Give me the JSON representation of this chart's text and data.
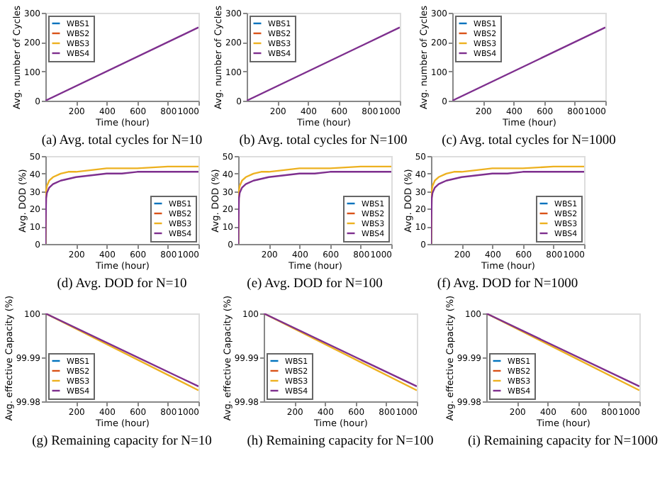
{
  "chart_data": [
    {
      "type": "line",
      "title": "(a) Avg. total cycles for N=10",
      "xlabel": "Time (hour)",
      "ylabel": "Avg. number of Cycles",
      "xlim": [
        0,
        1000
      ],
      "xticks": [
        200,
        400,
        600,
        800,
        1000
      ],
      "ylim": [
        0,
        300
      ],
      "yticks": [
        0,
        100,
        200,
        300
      ],
      "grid": false,
      "legend": "top left",
      "series": [
        {
          "name": "WBS1",
          "color": "#0072bd"
        },
        {
          "name": "WBS2",
          "color": "#d95319"
        },
        {
          "name": "WBS3",
          "color": "#edb120"
        },
        {
          "name": "WBS4",
          "color": "#7e2f8e",
          "x": [
            0,
            1000
          ],
          "values": [
            0,
            250
          ]
        }
      ]
    },
    {
      "type": "line",
      "title": "(b) Avg. total cycles for N=100",
      "xlabel": "Time (hour)",
      "ylabel": "Avg. number of Cycles",
      "xlim": [
        0,
        1000
      ],
      "xticks": [
        200,
        400,
        600,
        800,
        1000
      ],
      "ylim": [
        0,
        300
      ],
      "yticks": [
        0,
        100,
        200,
        300
      ],
      "grid": false,
      "legend": "top left",
      "series": [
        {
          "name": "WBS1",
          "color": "#0072bd"
        },
        {
          "name": "WBS2",
          "color": "#d95319"
        },
        {
          "name": "WBS3",
          "color": "#edb120"
        },
        {
          "name": "WBS4",
          "color": "#7e2f8e",
          "x": [
            0,
            1000
          ],
          "values": [
            0,
            250
          ]
        }
      ]
    },
    {
      "type": "line",
      "title": "(c) Avg. total cycles for N=1000",
      "xlabel": "Time (hour)",
      "ylabel": "Avg. number of Cycles",
      "xlim": [
        0,
        1000
      ],
      "xticks": [
        200,
        400,
        600,
        800,
        1000
      ],
      "ylim": [
        0,
        300
      ],
      "yticks": [
        0,
        100,
        200,
        300
      ],
      "grid": false,
      "legend": "top left",
      "series": [
        {
          "name": "WBS1",
          "color": "#0072bd"
        },
        {
          "name": "WBS2",
          "color": "#d95319"
        },
        {
          "name": "WBS3",
          "color": "#edb120"
        },
        {
          "name": "WBS4",
          "color": "#7e2f8e",
          "x": [
            0,
            1000
          ],
          "values": [
            0,
            250
          ]
        }
      ]
    },
    {
      "type": "line",
      "title": "(d) Avg. DOD for N=10",
      "xlabel": "Time (hour)",
      "ylabel": "Avg. DOD (%)",
      "xlim": [
        0,
        1000
      ],
      "xticks": [
        200,
        400,
        600,
        800,
        1000
      ],
      "ylim": [
        0,
        50
      ],
      "yticks": [
        0,
        10,
        20,
        30,
        40,
        50
      ],
      "grid": false,
      "legend": "bottom right",
      "series": [
        {
          "name": "WBS1",
          "color": "#0072bd"
        },
        {
          "name": "WBS2",
          "color": "#d95319"
        },
        {
          "name": "WBS3",
          "color": "#edb120",
          "x": [
            0,
            5,
            10,
            25,
            50,
            100,
            150,
            200,
            300,
            400,
            500,
            600,
            800,
            1000
          ],
          "values": [
            0,
            30,
            33,
            36,
            38,
            40,
            41,
            41,
            42,
            43,
            43,
            43,
            44,
            44
          ]
        },
        {
          "name": "WBS4",
          "color": "#7e2f8e",
          "x": [
            0,
            5,
            10,
            25,
            50,
            100,
            150,
            200,
            300,
            400,
            500,
            600,
            800,
            1000
          ],
          "values": [
            0,
            26,
            29,
            32,
            34,
            36,
            37,
            38,
            39,
            40,
            40,
            41,
            41,
            41
          ]
        }
      ]
    },
    {
      "type": "line",
      "title": "(e) Avg. DOD for N=100",
      "xlabel": "Time (hour)",
      "ylabel": "Avg. DOD (%)",
      "xlim": [
        0,
        1000
      ],
      "xticks": [
        200,
        400,
        600,
        800,
        1000
      ],
      "ylim": [
        0,
        50
      ],
      "yticks": [
        0,
        10,
        20,
        30,
        40,
        50
      ],
      "grid": false,
      "legend": "bottom right",
      "series": [
        {
          "name": "WBS1",
          "color": "#0072bd"
        },
        {
          "name": "WBS2",
          "color": "#d95319"
        },
        {
          "name": "WBS3",
          "color": "#edb120",
          "x": [
            0,
            5,
            10,
            25,
            50,
            100,
            150,
            200,
            300,
            400,
            500,
            600,
            800,
            1000
          ],
          "values": [
            0,
            30,
            33,
            36,
            38,
            40,
            41,
            41,
            42,
            43,
            43,
            43,
            44,
            44
          ]
        },
        {
          "name": "WBS4",
          "color": "#7e2f8e",
          "x": [
            0,
            5,
            10,
            25,
            50,
            100,
            150,
            200,
            300,
            400,
            500,
            600,
            800,
            1000
          ],
          "values": [
            0,
            26,
            29,
            32,
            34,
            36,
            37,
            38,
            39,
            40,
            40,
            41,
            41,
            41
          ]
        }
      ]
    },
    {
      "type": "line",
      "title": "(f) Avg. DOD for N=1000",
      "xlabel": "Time (hour)",
      "ylabel": "Avg. DOD (%)",
      "xlim": [
        0,
        1000
      ],
      "xticks": [
        200,
        400,
        600,
        800,
        1000
      ],
      "ylim": [
        0,
        50
      ],
      "yticks": [
        0,
        10,
        20,
        30,
        40,
        50
      ],
      "grid": false,
      "legend": "bottom right",
      "series": [
        {
          "name": "WBS1",
          "color": "#0072bd"
        },
        {
          "name": "WBS2",
          "color": "#d95319"
        },
        {
          "name": "WBS3",
          "color": "#edb120",
          "x": [
            0,
            5,
            10,
            25,
            50,
            100,
            150,
            200,
            300,
            400,
            500,
            600,
            800,
            1000
          ],
          "values": [
            0,
            30,
            33,
            36,
            38,
            40,
            41,
            41,
            42,
            43,
            43,
            43,
            44,
            44
          ]
        },
        {
          "name": "WBS4",
          "color": "#7e2f8e",
          "x": [
            0,
            5,
            10,
            25,
            50,
            100,
            150,
            200,
            300,
            400,
            500,
            600,
            800,
            1000
          ],
          "values": [
            0,
            26,
            29,
            32,
            34,
            36,
            37,
            38,
            39,
            40,
            40,
            41,
            41,
            41
          ]
        }
      ]
    },
    {
      "type": "line",
      "title": "(g) Remaining capacity for N=10",
      "xlabel": "Time (hour)",
      "ylabel": "Avg. effective Capacity (%)",
      "xlim": [
        0,
        1000
      ],
      "xticks": [
        200,
        400,
        600,
        800,
        1000
      ],
      "ylim": [
        99.98,
        100
      ],
      "yticks": [
        99.98,
        99.99,
        100
      ],
      "grid": false,
      "legend": "bottom left",
      "series": [
        {
          "name": "WBS1",
          "color": "#0072bd"
        },
        {
          "name": "WBS2",
          "color": "#d95319"
        },
        {
          "name": "WBS3",
          "color": "#edb120",
          "x": [
            0,
            1000
          ],
          "values": [
            100,
            99.9825
          ]
        },
        {
          "name": "WBS4",
          "color": "#7e2f8e",
          "x": [
            0,
            1000
          ],
          "values": [
            100,
            99.9834
          ]
        }
      ]
    },
    {
      "type": "line",
      "title": "(h) Remaining capacity for N=100",
      "xlabel": "Time (hour)",
      "ylabel": "Avg. effective Capacity (%)",
      "xlim": [
        0,
        1000
      ],
      "xticks": [
        200,
        400,
        600,
        800,
        1000
      ],
      "ylim": [
        99.98,
        100
      ],
      "yticks": [
        99.98,
        99.99,
        100
      ],
      "grid": false,
      "legend": "bottom left",
      "series": [
        {
          "name": "WBS1",
          "color": "#0072bd"
        },
        {
          "name": "WBS2",
          "color": "#d95319"
        },
        {
          "name": "WBS3",
          "color": "#edb120",
          "x": [
            0,
            1000
          ],
          "values": [
            100,
            99.9825
          ]
        },
        {
          "name": "WBS4",
          "color": "#7e2f8e",
          "x": [
            0,
            1000
          ],
          "values": [
            100,
            99.9834
          ]
        }
      ]
    },
    {
      "type": "line",
      "title": "(i) Remaining capacity for N=1000",
      "xlabel": "Time (hour)",
      "ylabel": "Avg. effective Capacity (%)",
      "xlim": [
        0,
        1000
      ],
      "xticks": [
        200,
        400,
        600,
        800,
        1000
      ],
      "ylim": [
        99.98,
        100
      ],
      "yticks": [
        99.98,
        99.99,
        100
      ],
      "grid": false,
      "legend": "bottom left",
      "series": [
        {
          "name": "WBS1",
          "color": "#0072bd"
        },
        {
          "name": "WBS2",
          "color": "#d95319"
        },
        {
          "name": "WBS3",
          "color": "#edb120",
          "x": [
            0,
            1000
          ],
          "values": [
            100,
            99.9825
          ]
        },
        {
          "name": "WBS4",
          "color": "#7e2f8e",
          "x": [
            0,
            1000
          ],
          "values": [
            100,
            99.9834
          ]
        }
      ]
    }
  ]
}
